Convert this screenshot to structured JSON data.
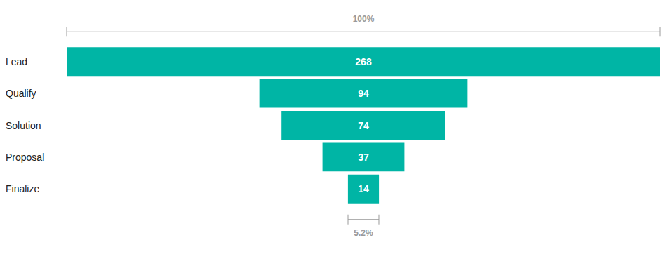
{
  "chart_data": {
    "type": "funnel",
    "categories": [
      "Lead",
      "Qualify",
      "Solution",
      "Proposal",
      "Finalize"
    ],
    "values": [
      268,
      94,
      74,
      37,
      14
    ],
    "color": "#00b5a5",
    "data_labels": true,
    "annotations": [
      {
        "category": "Lead",
        "value": 100,
        "label": "100%"
      },
      {
        "category": "Finalize",
        "value": 5.2,
        "label": "5.2%"
      }
    ]
  }
}
